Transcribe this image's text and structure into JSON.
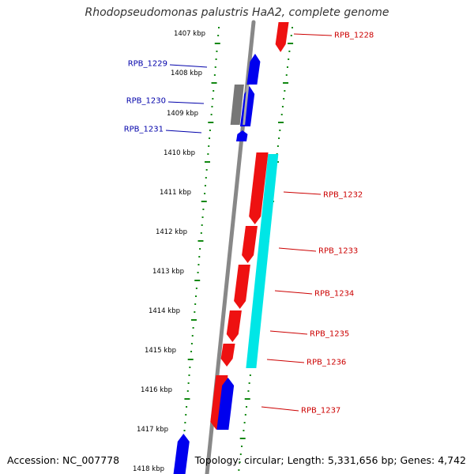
{
  "title": "Rhodopseudomonas palustris HaA2, complete genome",
  "footer": {
    "accession": "Accession: NC_007778",
    "stats": "Topology: circular; Length: 5,331,656 bp; Genes: 4,742"
  },
  "scale": {
    "kbp_labels": [
      "1407 kbp",
      "1408 kbp",
      "1409 kbp",
      "1410 kbp",
      "1411 kbp",
      "1412 kbp",
      "1413 kbp",
      "1414 kbp",
      "1415 kbp",
      "1416 kbp",
      "1417 kbp",
      "1418 kbp"
    ]
  },
  "colors": {
    "forward": "#ee1111",
    "reverse": "#0000ee",
    "other": "#777777",
    "highlight": "#00e6e6",
    "backbone": "#888888",
    "ticks": "#118811",
    "label_forward": "#cc0000",
    "label_reverse": "#0000aa"
  },
  "genes": [
    {
      "label": "RPB_1228",
      "strand": "forward"
    },
    {
      "label": "RPB_1229",
      "strand": "reverse"
    },
    {
      "label": "RPB_1230",
      "strand": "reverse"
    },
    {
      "label": "RPB_1231",
      "strand": "reverse"
    },
    {
      "label": "RPB_1232",
      "strand": "forward"
    },
    {
      "label": "RPB_1233",
      "strand": "forward"
    },
    {
      "label": "RPB_1234",
      "strand": "forward"
    },
    {
      "label": "RPB_1235",
      "strand": "forward"
    },
    {
      "label": "RPB_1236",
      "strand": "forward"
    },
    {
      "label": "RPB_1237",
      "strand": "forward"
    }
  ]
}
